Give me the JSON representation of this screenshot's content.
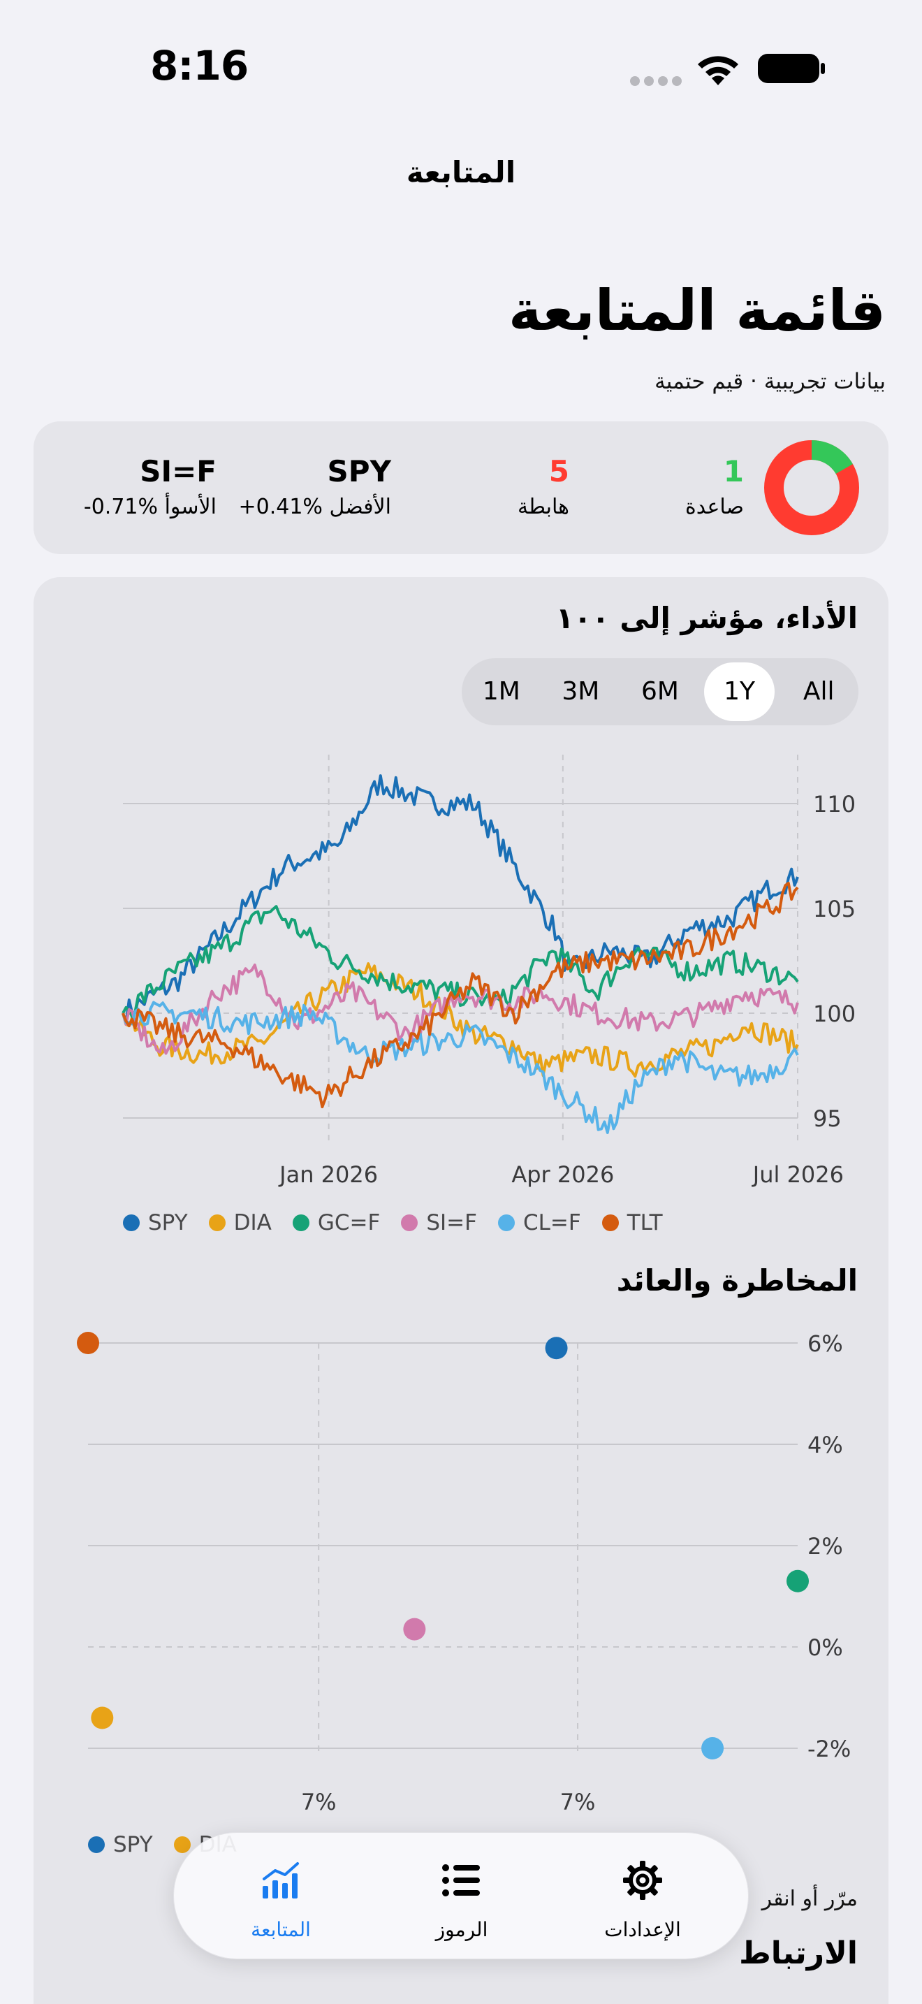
{
  "status_bar": {
    "time": "8:16"
  },
  "nav": {
    "title": "المتابعة"
  },
  "header": {
    "title": "قائمة المتابعة",
    "subtitle": "بيانات تجريبية · قيم حتمية"
  },
  "summary": {
    "up_count": "1",
    "up_label": "صاعدة",
    "down_count": "5",
    "down_label": "هابطة",
    "best_symbol": "SPY",
    "best_change": "+0.41%",
    "best_label": "الأفضل",
    "worst_symbol": "SI=F",
    "worst_change": "-0.71%",
    "worst_label": "الأسوأ",
    "donut_up_fraction": 0.1667,
    "colors": {
      "up": "#34c759",
      "down": "#ff3b30"
    }
  },
  "performance": {
    "title": "الأداء، مؤشر إلى ١٠٠",
    "ranges": [
      "1M",
      "3M",
      "6M",
      "1Y",
      "All"
    ],
    "selected_range": "1Y"
  },
  "risk": {
    "title": "المخاطرة والعائد"
  },
  "correlation": {
    "title": "الارتباط",
    "hint": "مرّر أو انقر"
  },
  "tabs": [
    {
      "label": "المتابعة",
      "icon": "chart-bar-icon",
      "selected": true
    },
    {
      "label": "الرموز",
      "icon": "list-icon",
      "selected": false
    },
    {
      "label": "الإعدادات",
      "icon": "gear-icon",
      "selected": false
    }
  ],
  "chart_data": [
    {
      "type": "line",
      "title": "الأداء، مؤشر إلى ١٠٠",
      "x_ticks": [
        "Jan 2026",
        "Apr 2026",
        "Jul 2026"
      ],
      "y_ticks": [
        95,
        100,
        105,
        110
      ],
      "ylim": [
        94,
        112
      ],
      "legend_position": "bottom",
      "grid": true,
      "series": [
        {
          "name": "SPY",
          "color": "#1a6fb5",
          "keypoints": [
            [
              0,
              100
            ],
            [
              0.08,
              101.5
            ],
            [
              0.18,
              105
            ],
            [
              0.24,
              107
            ],
            [
              0.32,
              108
            ],
            [
              0.38,
              111
            ],
            [
              0.46,
              110
            ],
            [
              0.52,
              110
            ],
            [
              0.58,
              107
            ],
            [
              0.64,
              104
            ],
            [
              0.66,
              102
            ],
            [
              0.72,
              103
            ],
            [
              0.78,
              102.5
            ],
            [
              0.84,
              104
            ],
            [
              0.9,
              104.5
            ],
            [
              0.96,
              106
            ],
            [
              1,
              106.5
            ]
          ]
        },
        {
          "name": "DIA",
          "color": "#e8a317",
          "keypoints": [
            [
              0,
              100
            ],
            [
              0.05,
              98.5
            ],
            [
              0.12,
              98
            ],
            [
              0.2,
              98.5
            ],
            [
              0.28,
              100.5
            ],
            [
              0.36,
              102
            ],
            [
              0.44,
              101
            ],
            [
              0.52,
              99
            ],
            [
              0.58,
              98.5
            ],
            [
              0.62,
              97.5
            ],
            [
              0.7,
              98
            ],
            [
              0.76,
              97.5
            ],
            [
              0.82,
              98
            ],
            [
              0.88,
              98.5
            ],
            [
              0.92,
              99.5
            ],
            [
              1,
              98.5
            ]
          ]
        },
        {
          "name": "GC=F",
          "color": "#16a276",
          "keypoints": [
            [
              0,
              100
            ],
            [
              0.08,
              102
            ],
            [
              0.14,
              103
            ],
            [
              0.22,
              105
            ],
            [
              0.26,
              104
            ],
            [
              0.32,
              102.5
            ],
            [
              0.4,
              101.5
            ],
            [
              0.48,
              101
            ],
            [
              0.56,
              100.5
            ],
            [
              0.64,
              103
            ],
            [
              0.7,
              101
            ],
            [
              0.76,
              103
            ],
            [
              0.84,
              102
            ],
            [
              0.9,
              102.5
            ],
            [
              0.96,
              102
            ],
            [
              1,
              101.5
            ]
          ]
        },
        {
          "name": "SI=F",
          "color": "#d17aac",
          "keypoints": [
            [
              0,
              100
            ],
            [
              0.06,
              98
            ],
            [
              0.14,
              101
            ],
            [
              0.2,
              102
            ],
            [
              0.26,
              99.5
            ],
            [
              0.34,
              101
            ],
            [
              0.42,
              99
            ],
            [
              0.5,
              101
            ],
            [
              0.58,
              100.5
            ],
            [
              0.62,
              101
            ],
            [
              0.7,
              100
            ],
            [
              0.78,
              99.5
            ],
            [
              0.86,
              100
            ],
            [
              0.92,
              101
            ],
            [
              1,
              100.5
            ]
          ]
        },
        {
          "name": "CL=F",
          "color": "#56b2e8",
          "keypoints": [
            [
              0,
              100
            ],
            [
              0.1,
              100
            ],
            [
              0.18,
              99.5
            ],
            [
              0.28,
              100
            ],
            [
              0.36,
              98
            ],
            [
              0.44,
              98.5
            ],
            [
              0.52,
              99
            ],
            [
              0.6,
              97.5
            ],
            [
              0.66,
              96
            ],
            [
              0.72,
              94.5
            ],
            [
              0.76,
              96.5
            ],
            [
              0.82,
              98
            ],
            [
              0.88,
              97
            ],
            [
              0.94,
              97
            ],
            [
              1,
              98
            ]
          ]
        },
        {
          "name": "TLT",
          "color": "#d45b0f",
          "keypoints": [
            [
              0,
              100
            ],
            [
              0.08,
              99
            ],
            [
              0.16,
              98.5
            ],
            [
              0.24,
              97
            ],
            [
              0.3,
              96
            ],
            [
              0.36,
              97.5
            ],
            [
              0.44,
              99
            ],
            [
              0.52,
              101.5
            ],
            [
              0.58,
              100
            ],
            [
              0.64,
              102
            ],
            [
              0.7,
              102.5
            ],
            [
              0.76,
              102.5
            ],
            [
              0.84,
              103
            ],
            [
              0.9,
              104
            ],
            [
              0.96,
              105
            ],
            [
              1,
              106
            ]
          ]
        }
      ]
    },
    {
      "type": "scatter",
      "title": "المخاطرة والعائد",
      "x_ticks": [
        "7%",
        "7%"
      ],
      "y_ticks": [
        "6%",
        "4%",
        "2%",
        "0%",
        "-2%"
      ],
      "ylim": [
        -2,
        6
      ],
      "legend_position": "bottom",
      "points": [
        {
          "name": "TLT",
          "color": "#d45b0f",
          "x": 0.0,
          "y": 6.0
        },
        {
          "name": "SPY",
          "color": "#1a6fb5",
          "x": 0.66,
          "y": 5.9
        },
        {
          "name": "GC=F",
          "color": "#16a276",
          "x": 1.0,
          "y": 1.3
        },
        {
          "name": "SI=F",
          "color": "#d17aac",
          "x": 0.46,
          "y": 0.35
        },
        {
          "name": "DIA",
          "color": "#e8a317",
          "x": 0.02,
          "y": -1.4
        },
        {
          "name": "CL=F",
          "color": "#56b2e8",
          "x": 0.88,
          "y": -2.0
        }
      ],
      "legend": [
        "SPY",
        "DIA"
      ]
    }
  ]
}
